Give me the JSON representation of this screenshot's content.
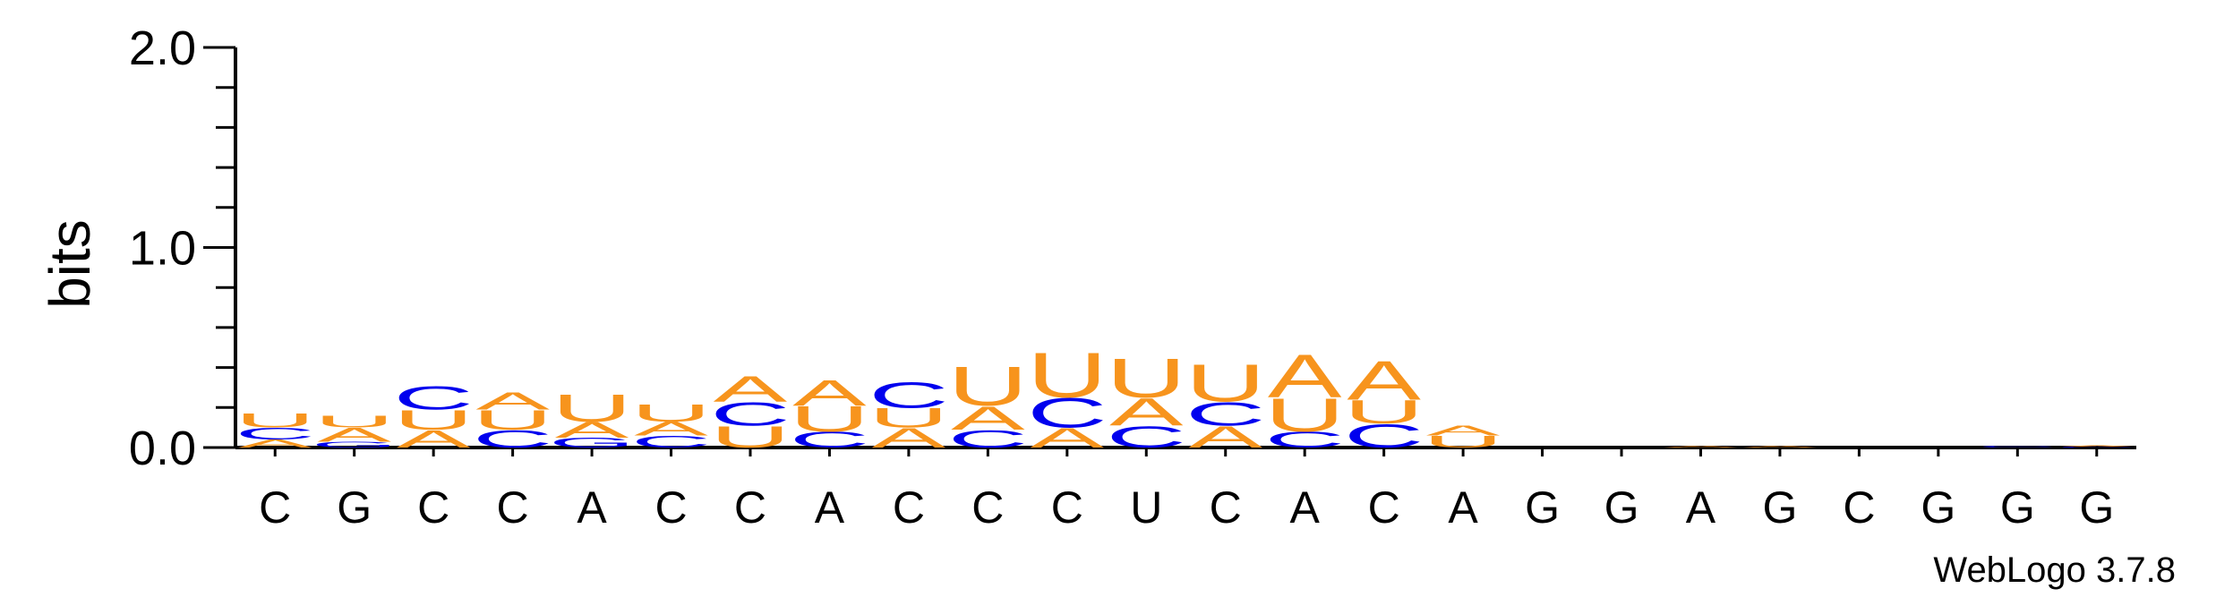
{
  "chart_data": {
    "type": "sequence-logo",
    "ylabel": "bits",
    "ylim": [
      0,
      2.0
    ],
    "yticks": [
      "0.0",
      "1.0",
      "2.0"
    ],
    "credit": "WebLogo 3.7.8",
    "colors": {
      "A": "#F7941D",
      "U": "#F7941D",
      "C": "#0000EE",
      "G": "#0000EE"
    },
    "positions": [
      {
        "label": "C",
        "stack": [
          [
            "A",
            0.04
          ],
          [
            "C",
            0.06
          ],
          [
            "U",
            0.07
          ]
        ]
      },
      {
        "label": "G",
        "stack": [
          [
            "G",
            0.03
          ],
          [
            "A",
            0.07
          ],
          [
            "U",
            0.06
          ]
        ]
      },
      {
        "label": "C",
        "stack": [
          [
            "A",
            0.09
          ],
          [
            "U",
            0.1
          ],
          [
            "C",
            0.12
          ]
        ]
      },
      {
        "label": "C",
        "stack": [
          [
            "C",
            0.09
          ],
          [
            "U",
            0.1
          ],
          [
            "A",
            0.09
          ]
        ]
      },
      {
        "label": "A",
        "stack": [
          [
            "G",
            0.05
          ],
          [
            "A",
            0.08
          ],
          [
            "U",
            0.14
          ]
        ]
      },
      {
        "label": "C",
        "stack": [
          [
            "C",
            0.06
          ],
          [
            "A",
            0.07
          ],
          [
            "U",
            0.09
          ]
        ]
      },
      {
        "label": "C",
        "stack": [
          [
            "U",
            0.11
          ],
          [
            "C",
            0.12
          ],
          [
            "A",
            0.13
          ]
        ]
      },
      {
        "label": "A",
        "stack": [
          [
            "C",
            0.08
          ],
          [
            "U",
            0.13
          ],
          [
            "A",
            0.13
          ]
        ]
      },
      {
        "label": "C",
        "stack": [
          [
            "A",
            0.1
          ],
          [
            "U",
            0.1
          ],
          [
            "C",
            0.13
          ]
        ]
      },
      {
        "label": "C",
        "stack": [
          [
            "C",
            0.09
          ],
          [
            "A",
            0.12
          ],
          [
            "U",
            0.2
          ]
        ]
      },
      {
        "label": "C",
        "stack": [
          [
            "A",
            0.1
          ],
          [
            "C",
            0.15
          ],
          [
            "U",
            0.23
          ]
        ]
      },
      {
        "label": "U",
        "stack": [
          [
            "C",
            0.11
          ],
          [
            "A",
            0.14
          ],
          [
            "U",
            0.2
          ]
        ]
      },
      {
        "label": "C",
        "stack": [
          [
            "A",
            0.11
          ],
          [
            "C",
            0.12
          ],
          [
            "U",
            0.19
          ]
        ]
      },
      {
        "label": "A",
        "stack": [
          [
            "C",
            0.08
          ],
          [
            "U",
            0.17
          ],
          [
            "A",
            0.22
          ]
        ]
      },
      {
        "label": "C",
        "stack": [
          [
            "C",
            0.12
          ],
          [
            "U",
            0.12
          ],
          [
            "A",
            0.2
          ]
        ]
      },
      {
        "label": "A",
        "stack": [
          [
            "U",
            0.06
          ],
          [
            "A",
            0.05
          ]
        ]
      },
      {
        "label": "G",
        "stack": []
      },
      {
        "label": "G",
        "stack": []
      },
      {
        "label": "A",
        "stack": [
          [
            "A",
            0.01
          ]
        ]
      },
      {
        "label": "G",
        "stack": [
          [
            "A",
            0.01
          ]
        ]
      },
      {
        "label": "C",
        "stack": []
      },
      {
        "label": "G",
        "stack": []
      },
      {
        "label": "G",
        "stack": [
          [
            "C",
            0.01
          ]
        ]
      },
      {
        "label": "G",
        "stack": [
          [
            "C",
            0.005
          ],
          [
            "A",
            0.005
          ]
        ]
      }
    ]
  }
}
